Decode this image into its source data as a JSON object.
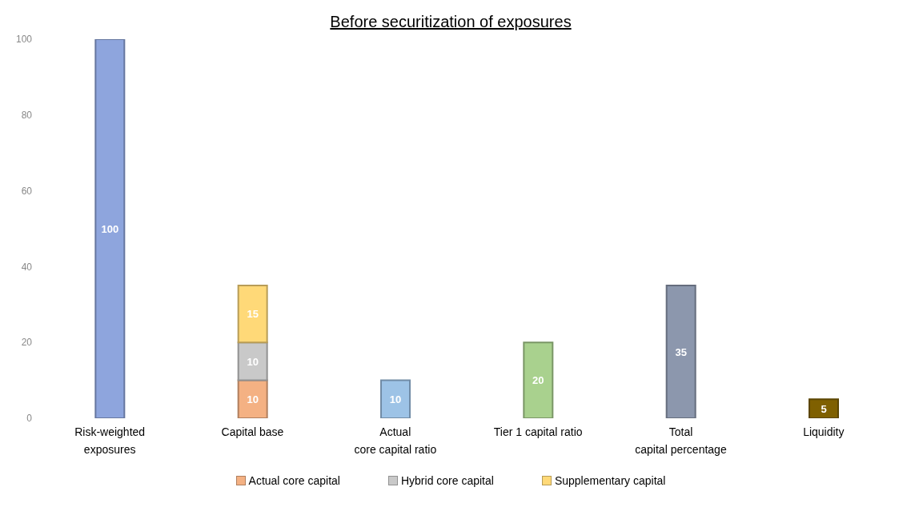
{
  "chart_data": {
    "type": "bar",
    "title": "Before securitization of exposures",
    "categories": [
      "Risk-weighted\nexposures",
      "Capital base",
      "Actual\ncore capital ratio",
      "Tier 1 capital ratio",
      "Total\ncapital percentage",
      "Liquidity"
    ],
    "stacked": true,
    "series": [
      {
        "colors": [
          "#8ea5dd",
          "#ffffff",
          "#9dc3e6",
          "#a9d18e",
          "#8c97ad",
          "#7f6000"
        ],
        "values": [
          100,
          null,
          10,
          20,
          35,
          5
        ]
      },
      {
        "name": "Actual core capital",
        "color": "#f4b183",
        "values": [
          null,
          10,
          null,
          null,
          null,
          null
        ]
      },
      {
        "name": "Hybrid core capital",
        "color": "#c9c9c9",
        "values": [
          null,
          10,
          null,
          null,
          null,
          null
        ]
      },
      {
        "name": "Supplementary capital",
        "color": "#ffd978",
        "values": [
          null,
          15,
          null,
          null,
          null,
          null
        ]
      }
    ],
    "ylim": [
      0,
      100
    ],
    "yticks": [
      0,
      20,
      40,
      60,
      80,
      100
    ],
    "grid": false,
    "legend": "bottom",
    "data_labels": true
  }
}
